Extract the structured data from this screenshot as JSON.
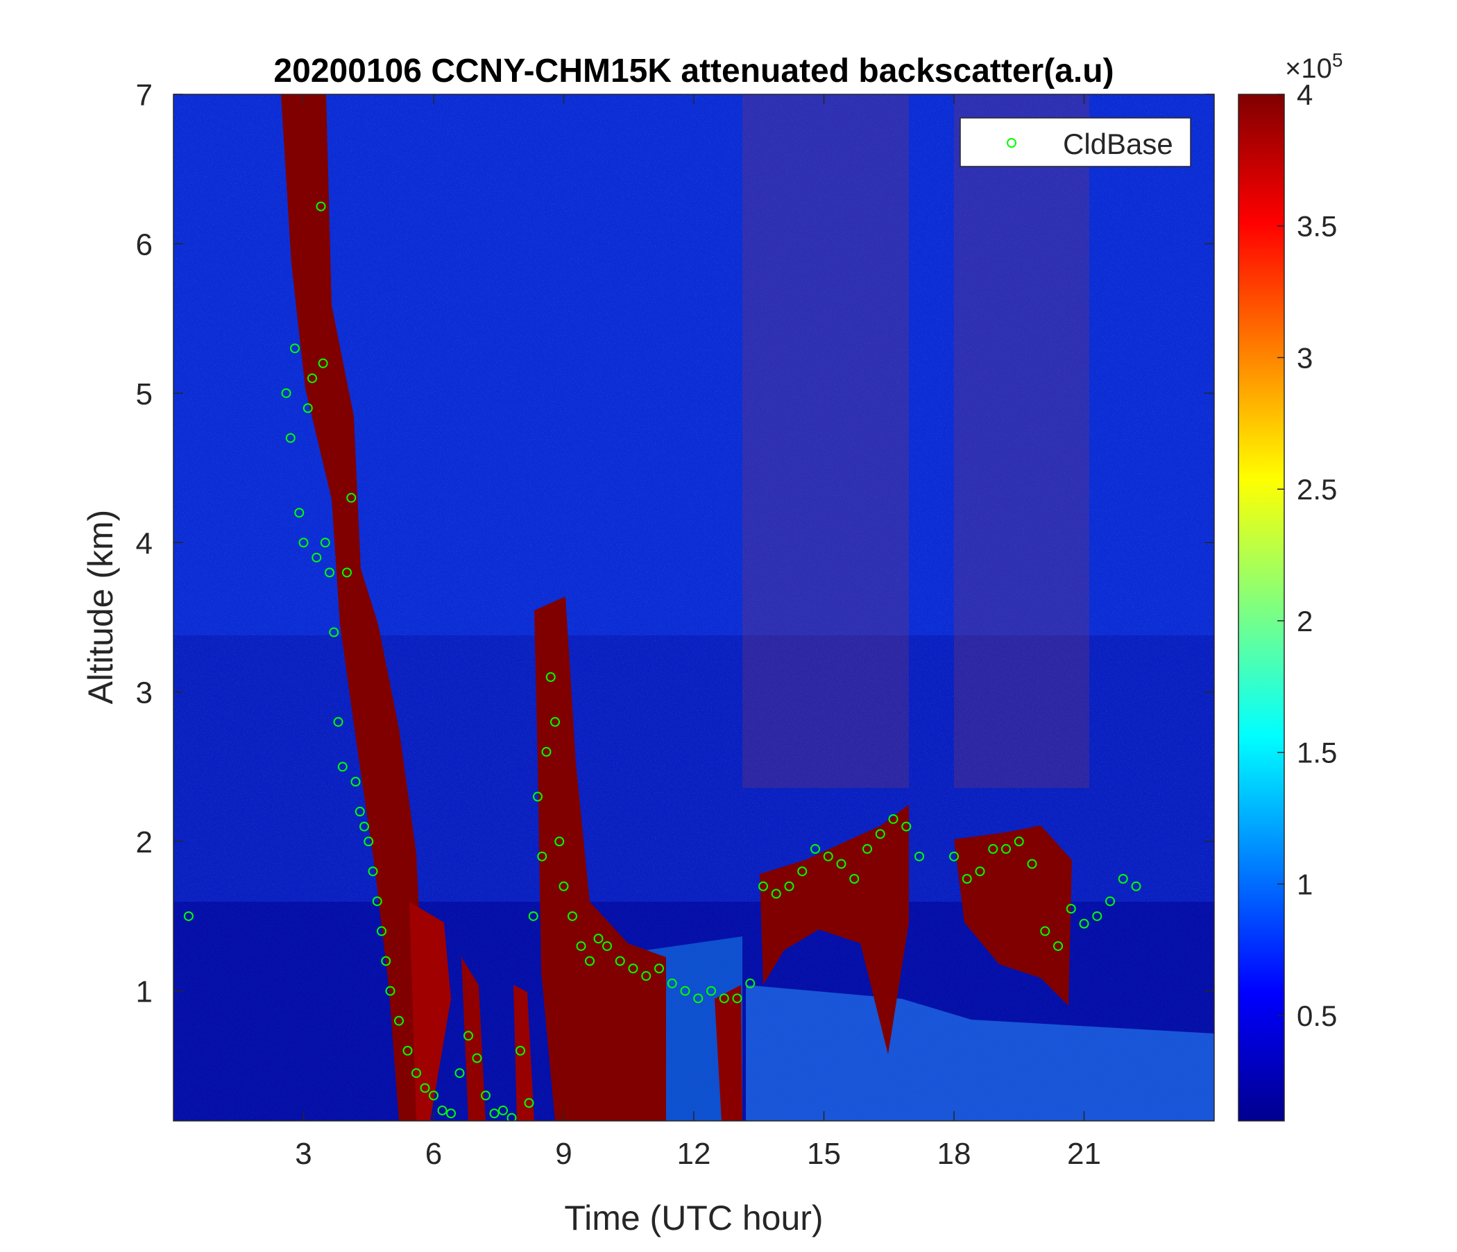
{
  "chart_data": {
    "type": "heatmap",
    "title": "20200106 CCNY-CHM15K attenuated backscatter(a.u)",
    "xlabel": "Time (UTC hour)",
    "ylabel": "Altitude (km)",
    "xlim": [
      0,
      24
    ],
    "ylim": [
      0.13,
      7
    ],
    "x_ticks": [
      3,
      6,
      9,
      12,
      15,
      18,
      21
    ],
    "y_ticks": [
      1,
      2,
      3,
      4,
      5,
      6,
      7
    ],
    "colorbar": {
      "colormap": "jet",
      "clim": [
        10000,
        400000
      ],
      "ticks": [
        0.5,
        1,
        1.5,
        2,
        2.5,
        3,
        3.5,
        4
      ],
      "exponent_label": "×10⁵",
      "exponent_base": "×10",
      "exponent_power": "5"
    },
    "legend": {
      "location": "top-right",
      "entries": [
        "CldBase"
      ]
    },
    "series": [
      {
        "name": "CldBase",
        "marker": "circle",
        "color": "#00ff00",
        "x": [
          0.35,
          2.6,
          2.7,
          2.8,
          2.9,
          3.0,
          3.1,
          3.2,
          3.3,
          3.4,
          3.45,
          3.5,
          3.6,
          3.7,
          3.8,
          3.9,
          4.0,
          4.1,
          4.2,
          4.3,
          4.4,
          4.5,
          4.6,
          4.7,
          4.8,
          4.9,
          5.0,
          5.2,
          5.4,
          5.6,
          5.8,
          6.0,
          6.2,
          6.4,
          6.6,
          6.8,
          7.0,
          7.2,
          7.4,
          7.6,
          7.8,
          8.0,
          8.2,
          8.3,
          8.4,
          8.5,
          8.6,
          8.7,
          8.8,
          8.9,
          9.0,
          9.2,
          9.4,
          9.6,
          9.8,
          10.0,
          10.3,
          10.6,
          10.9,
          11.2,
          11.5,
          11.8,
          12.1,
          12.4,
          12.7,
          13.0,
          13.3,
          13.6,
          13.9,
          14.2,
          14.5,
          14.8,
          15.1,
          15.4,
          15.7,
          16.0,
          16.3,
          16.6,
          16.9,
          17.2,
          18.0,
          18.3,
          18.6,
          18.9,
          19.2,
          19.5,
          19.8,
          20.1,
          20.4,
          20.7,
          21.0,
          21.3,
          21.6,
          21.9,
          22.2
        ],
        "y": [
          1.5,
          5.0,
          4.7,
          5.3,
          4.2,
          4.0,
          4.9,
          5.1,
          3.9,
          6.25,
          5.2,
          4.0,
          3.8,
          3.4,
          2.8,
          2.5,
          3.8,
          4.3,
          2.4,
          2.2,
          2.1,
          2.0,
          1.8,
          1.6,
          1.4,
          1.2,
          1.0,
          0.8,
          0.6,
          0.45,
          0.35,
          0.3,
          0.2,
          0.18,
          0.45,
          0.7,
          0.55,
          0.3,
          0.18,
          0.2,
          0.15,
          0.6,
          0.25,
          1.5,
          2.3,
          1.9,
          2.6,
          3.1,
          2.8,
          2.0,
          1.7,
          1.5,
          1.3,
          1.2,
          1.35,
          1.3,
          1.2,
          1.15,
          1.1,
          1.15,
          1.05,
          1.0,
          0.95,
          1.0,
          0.95,
          0.95,
          1.05,
          1.7,
          1.65,
          1.7,
          1.8,
          1.95,
          1.9,
          1.85,
          1.75,
          1.95,
          2.05,
          2.15,
          2.1,
          1.9,
          1.9,
          1.75,
          1.8,
          1.95,
          1.95,
          2.0,
          1.85,
          1.4,
          1.3,
          1.55,
          1.45,
          1.5,
          1.6,
          1.75,
          1.7
        ]
      }
    ]
  }
}
